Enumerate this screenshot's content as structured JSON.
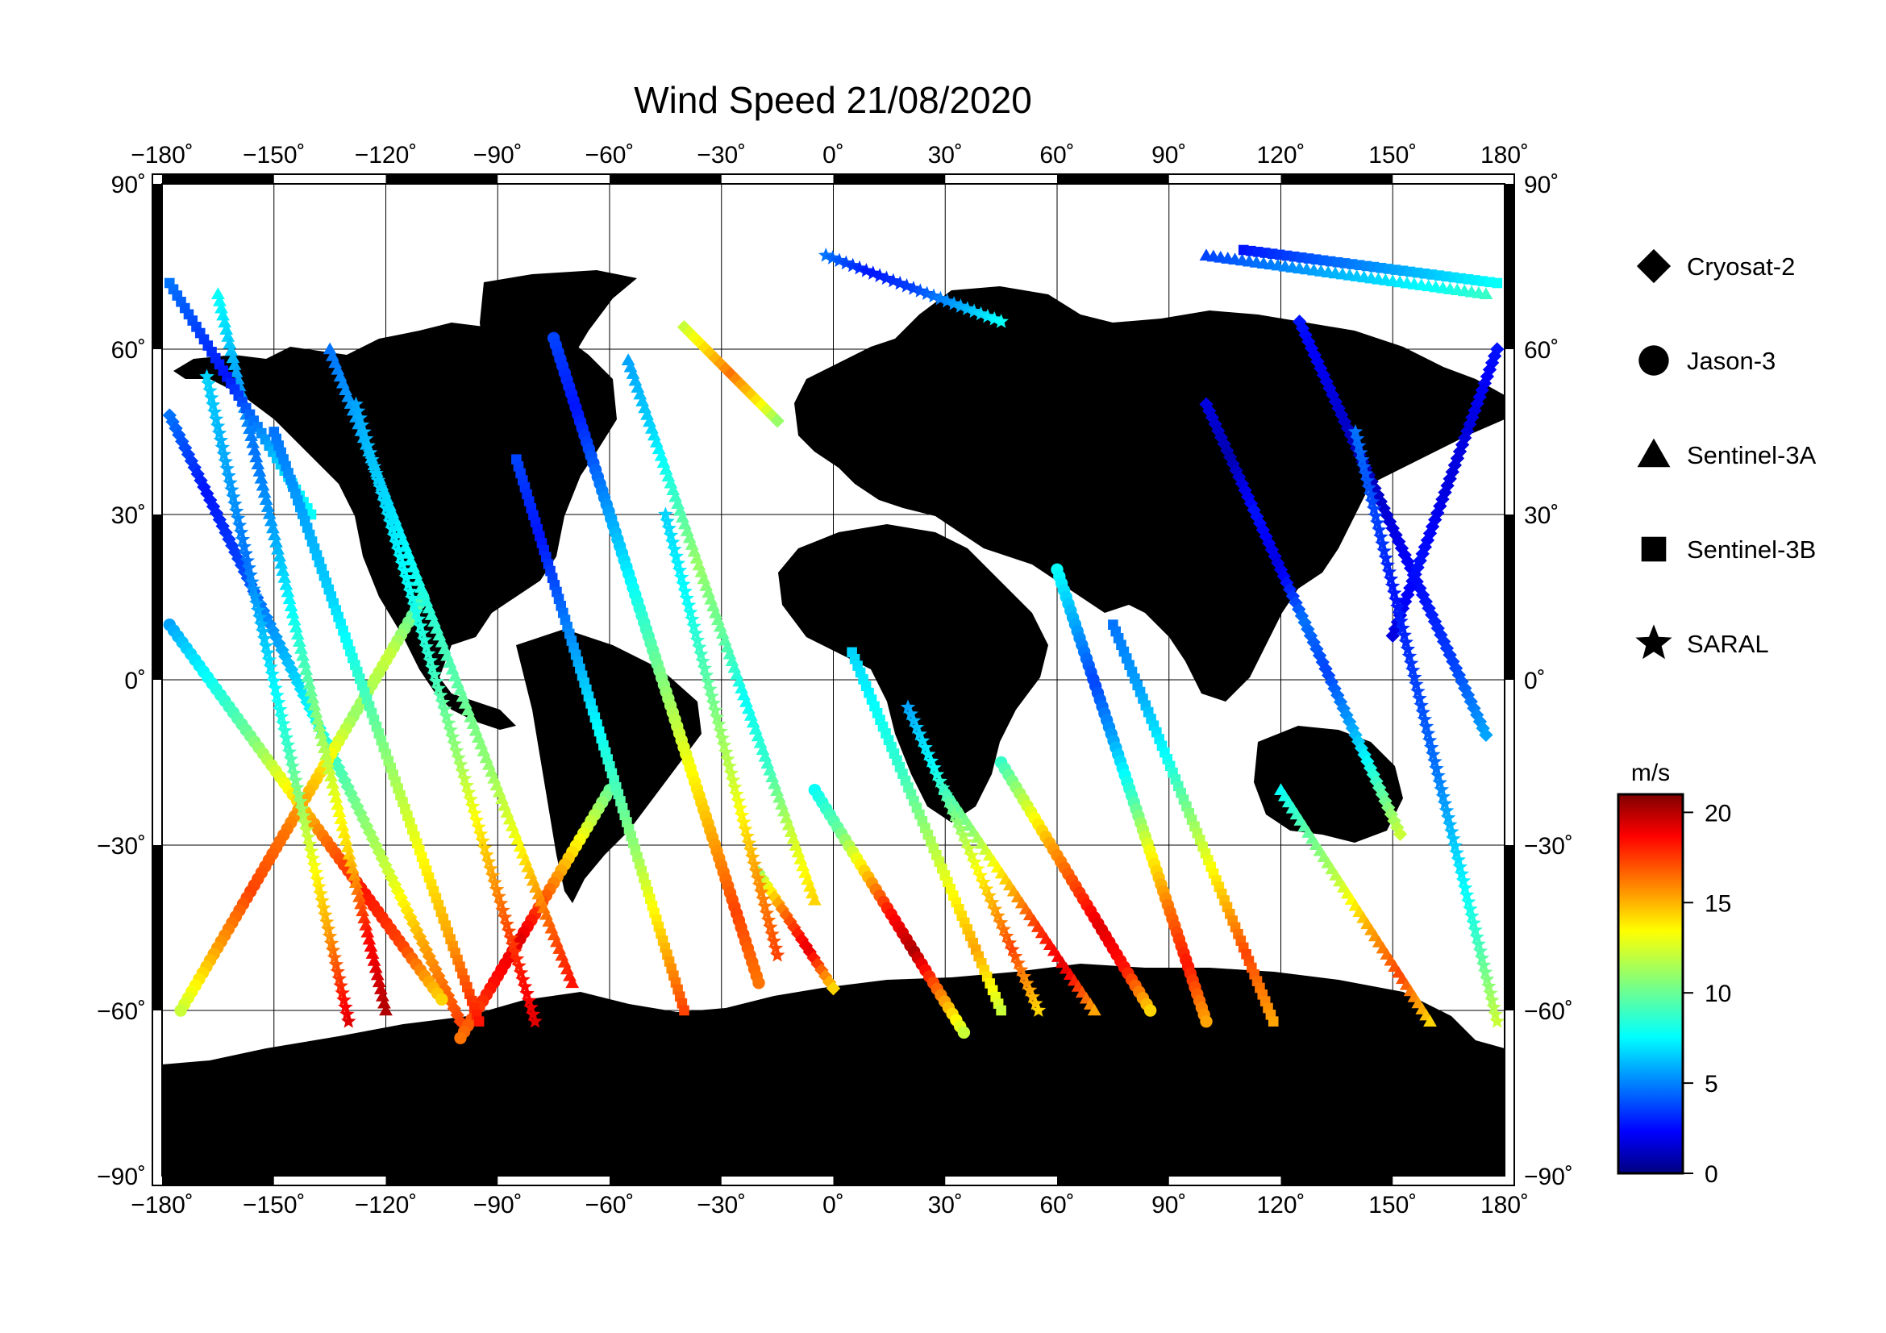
{
  "title": "Wind Speed 21/08/2020",
  "map": {
    "lon_range": [
      -180,
      180
    ],
    "lat_range": [
      -90,
      90
    ],
    "lon_ticks": [
      {
        "value": -180,
        "label": "−180˚"
      },
      {
        "value": -150,
        "label": "−150˚"
      },
      {
        "value": -120,
        "label": "−120˚"
      },
      {
        "value": -90,
        "label": "−90˚"
      },
      {
        "value": -60,
        "label": "−60˚"
      },
      {
        "value": -30,
        "label": "−30˚"
      },
      {
        "value": 0,
        "label": "0˚"
      },
      {
        "value": 30,
        "label": "30˚"
      },
      {
        "value": 60,
        "label": "60˚"
      },
      {
        "value": 90,
        "label": "90˚"
      },
      {
        "value": 120,
        "label": "120˚"
      },
      {
        "value": 150,
        "label": "150˚"
      },
      {
        "value": 180,
        "label": "180˚"
      }
    ],
    "lat_ticks": [
      {
        "value": 90,
        "label": "90˚"
      },
      {
        "value": 60,
        "label": "60˚"
      },
      {
        "value": 30,
        "label": "30˚"
      },
      {
        "value": 0,
        "label": "0˚"
      },
      {
        "value": -30,
        "label": "−30˚"
      },
      {
        "value": -60,
        "label": "−60˚"
      },
      {
        "value": -90,
        "label": "−90˚"
      }
    ],
    "land_color": "#bebebe",
    "ocean_color": "#ffffff",
    "grid": true
  },
  "legend": {
    "placement": "right",
    "items": [
      {
        "name": "Cryosat-2",
        "symbol": "diamond"
      },
      {
        "name": "Jason-3",
        "symbol": "circle"
      },
      {
        "name": "Sentinel-3A",
        "symbol": "triangle"
      },
      {
        "name": "Sentinel-3B",
        "symbol": "square"
      },
      {
        "name": "SARAL",
        "symbol": "star"
      }
    ]
  },
  "colorbar": {
    "unit": "m/s",
    "min": 0,
    "max": 21,
    "ticks": [
      {
        "value": 20,
        "label": "20"
      },
      {
        "value": 15,
        "label": "15"
      },
      {
        "value": 10,
        "label": "10"
      },
      {
        "value": 5,
        "label": "5"
      },
      {
        "value": 0,
        "label": "0"
      }
    ],
    "colormap": "jet"
  },
  "chart_data": {
    "type": "scatter",
    "title": "Wind Speed 21/08/2020",
    "xlabel": "",
    "ylabel": "",
    "xlim": [
      -180,
      180
    ],
    "ylim": [
      -90,
      90
    ],
    "value_unit": "m/s",
    "series": [
      {
        "name": "Cryosat-2",
        "symbol": "diamond",
        "tracks": [
          {
            "start": [
              -178,
              48
            ],
            "end": [
              -100,
              -62
            ],
            "values": [
              5,
              3,
              4,
              6,
              8,
              10,
              12,
              15,
              17
            ]
          },
          {
            "start": [
              -40,
              64
            ],
            "end": [
              -15,
              47
            ],
            "values": [
              12,
              14,
              16,
              14,
              11
            ]
          },
          {
            "start": [
              -20,
              -35
            ],
            "end": [
              0,
              -56
            ],
            "values": [
              11,
              16,
              19,
              14
            ]
          },
          {
            "start": [
              100,
              50
            ],
            "end": [
              152,
              -28
            ],
            "values": [
              2,
              1,
              3,
              2,
              5,
              4,
              6,
              9,
              12
            ]
          },
          {
            "start": [
              125,
              65
            ],
            "end": [
              175,
              -10
            ],
            "values": [
              3,
              2,
              1,
              2,
              3,
              4,
              6
            ]
          },
          {
            "start": [
              178,
              60
            ],
            "end": [
              150,
              8
            ],
            "values": [
              3,
              2,
              2,
              3,
              2
            ]
          }
        ]
      },
      {
        "name": "Jason-3",
        "symbol": "circle",
        "tracks": [
          {
            "start": [
              -178,
              10
            ],
            "end": [
              -105,
              -58
            ],
            "values": [
              6,
              8,
              10,
              13,
              16,
              18,
              17,
              14
            ]
          },
          {
            "start": [
              -110,
              15
            ],
            "end": [
              -175,
              -60
            ],
            "values": [
              9,
              12,
              11,
              14,
              16,
              17,
              15,
              12
            ]
          },
          {
            "start": [
              -75,
              62
            ],
            "end": [
              -20,
              -55
            ],
            "values": [
              4,
              3,
              5,
              7,
              9,
              11,
              13,
              15,
              17,
              16
            ]
          },
          {
            "start": [
              -5,
              -20
            ],
            "end": [
              35,
              -64
            ],
            "values": [
              8,
              10,
              14,
              18,
              20,
              16,
              12
            ]
          },
          {
            "start": [
              45,
              -15
            ],
            "end": [
              85,
              -60
            ],
            "values": [
              9,
              12,
              15,
              17,
              19,
              18,
              14
            ]
          },
          {
            "start": [
              60,
              20
            ],
            "end": [
              100,
              -62
            ],
            "values": [
              8,
              6,
              4,
              6,
              9,
              13,
              16,
              18,
              15
            ]
          },
          {
            "start": [
              -60,
              -20
            ],
            "end": [
              -100,
              -65
            ],
            "values": [
              10,
              13,
              16,
              19,
              18,
              16
            ]
          }
        ]
      },
      {
        "name": "Sentinel-3A",
        "symbol": "triangle",
        "tracks": [
          {
            "start": [
              -165,
              70
            ],
            "end": [
              -120,
              -60
            ],
            "values": [
              8,
              6,
              5,
              6,
              8,
              10,
              12,
              14,
              18,
              20
            ]
          },
          {
            "start": [
              -135,
              60
            ],
            "end": [
              -70,
              -55
            ],
            "values": [
              5,
              6,
              7,
              8,
              9,
              10,
              11,
              13,
              16,
              18
            ]
          },
          {
            "start": [
              -55,
              58
            ],
            "end": [
              -5,
              -40
            ],
            "values": [
              6,
              7,
              9,
              11,
              10,
              8,
              9,
              12,
              14
            ]
          },
          {
            "start": [
              30,
              -20
            ],
            "end": [
              70,
              -60
            ],
            "values": [
              9,
              11,
              14,
              17,
              19,
              15
            ]
          },
          {
            "start": [
              120,
              -20
            ],
            "end": [
              160,
              -62
            ],
            "values": [
              8,
              10,
              12,
              15,
              17,
              14
            ]
          },
          {
            "start": [
              100,
              77
            ],
            "end": [
              175,
              70
            ],
            "values": [
              4,
              5,
              6,
              7,
              8,
              9
            ]
          }
        ]
      },
      {
        "name": "Sentinel-3B",
        "symbol": "square",
        "tracks": [
          {
            "start": [
              -178,
              72
            ],
            "end": [
              -140,
              30
            ],
            "values": [
              5,
              4,
              3,
              5,
              7,
              8
            ]
          },
          {
            "start": [
              -150,
              45
            ],
            "end": [
              -95,
              -62
            ],
            "values": [
              5,
              6,
              7,
              9,
              11,
              13,
              15,
              18
            ]
          },
          {
            "start": [
              -85,
              40
            ],
            "end": [
              -40,
              -60
            ],
            "values": [
              4,
              3,
              5,
              7,
              9,
              11,
              14,
              17
            ]
          },
          {
            "start": [
              5,
              5
            ],
            "end": [
              45,
              -60
            ],
            "values": [
              7,
              8,
              9,
              11,
              13,
              15,
              12
            ]
          },
          {
            "start": [
              75,
              10
            ],
            "end": [
              118,
              -62
            ],
            "values": [
              5,
              6,
              8,
              11,
              14,
              17,
              15
            ]
          },
          {
            "start": [
              110,
              78
            ],
            "end": [
              178,
              72
            ],
            "values": [
              3,
              4,
              5,
              6,
              7,
              8
            ]
          }
        ]
      },
      {
        "name": "SARAL",
        "symbol": "star",
        "tracks": [
          {
            "start": [
              -168,
              55
            ],
            "end": [
              -130,
              -62
            ],
            "values": [
              7,
              6,
              5,
              7,
              9,
              12,
              15,
              19
            ]
          },
          {
            "start": [
              -128,
              50
            ],
            "end": [
              -80,
              -62
            ],
            "values": [
              6,
              7,
              8,
              9,
              11,
              14,
              17,
              19
            ]
          },
          {
            "start": [
              -2,
              77
            ],
            "end": [
              45,
              65
            ],
            "values": [
              5,
              3,
              4,
              6,
              8
            ]
          },
          {
            "start": [
              -45,
              30
            ],
            "end": [
              -15,
              -50
            ],
            "values": [
              7,
              8,
              10,
              12,
              15,
              17
            ]
          },
          {
            "start": [
              20,
              -5
            ],
            "end": [
              55,
              -60
            ],
            "values": [
              6,
              8,
              11,
              14,
              17,
              14
            ]
          },
          {
            "start": [
              140,
              45
            ],
            "end": [
              178,
              -62
            ],
            "values": [
              5,
              4,
              3,
              4,
              5,
              7,
              9,
              12
            ]
          }
        ]
      }
    ]
  }
}
